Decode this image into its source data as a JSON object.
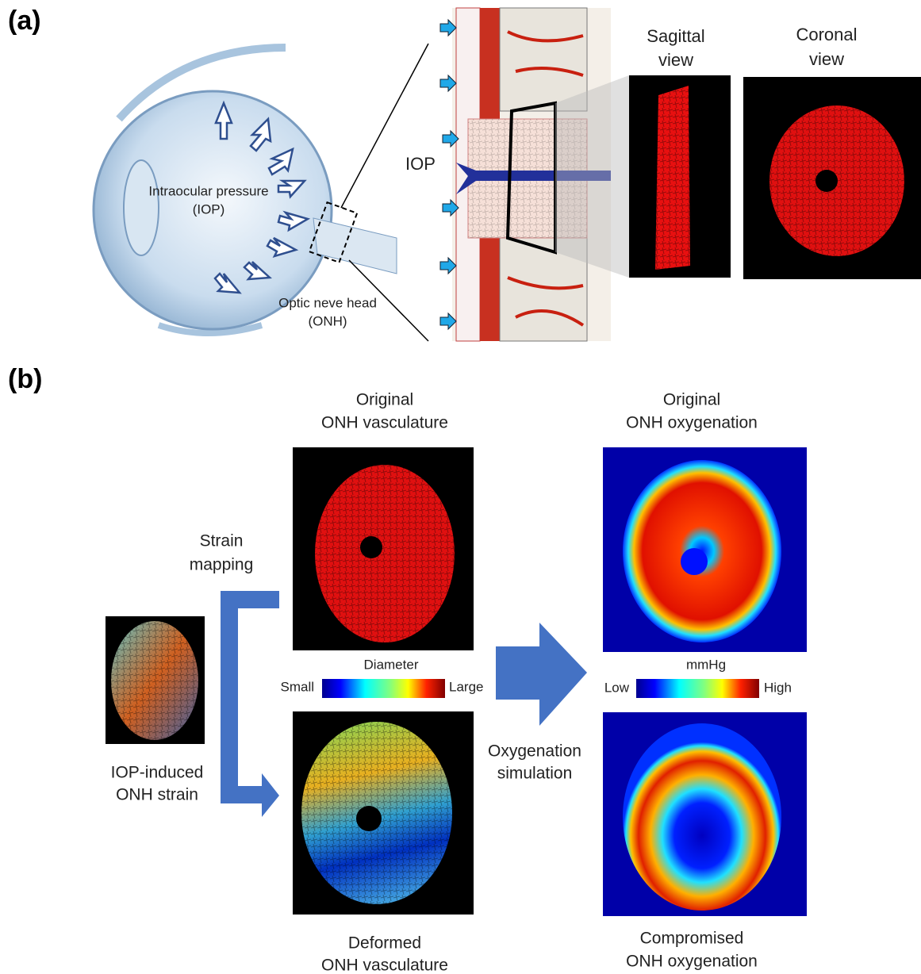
{
  "panel_a": {
    "label": "(a)",
    "iop_label": [
      "Intraocular pressure",
      "(IOP)"
    ],
    "onh_label": [
      "Optic neve head",
      "(ONH)"
    ],
    "section_label": "IOP",
    "views": [
      {
        "title": [
          "Sagittal",
          "view"
        ]
      },
      {
        "title": [
          "Coronal",
          "view"
        ]
      }
    ]
  },
  "panel_b": {
    "label": "(b)",
    "original_vasculature": [
      "Original",
      "ONH vasculature"
    ],
    "original_oxygenation": [
      "Original",
      "ONH oxygenation"
    ],
    "strain_mapping": [
      "Strain",
      "mapping"
    ],
    "diameter_scale": {
      "title": "Diameter",
      "low": "Small",
      "high": "Large"
    },
    "oxygen_scale": {
      "title": "mmHg",
      "low": "Low",
      "high": "High"
    },
    "simulation": [
      "Oxygenation",
      "simulation"
    ],
    "strain": [
      "IOP-induced",
      "ONH strain"
    ],
    "deformed_vasculature": [
      "Deformed",
      "ONH vasculature"
    ],
    "compromised_oxygenation": [
      "Compromised",
      "ONH oxygenation"
    ]
  }
}
